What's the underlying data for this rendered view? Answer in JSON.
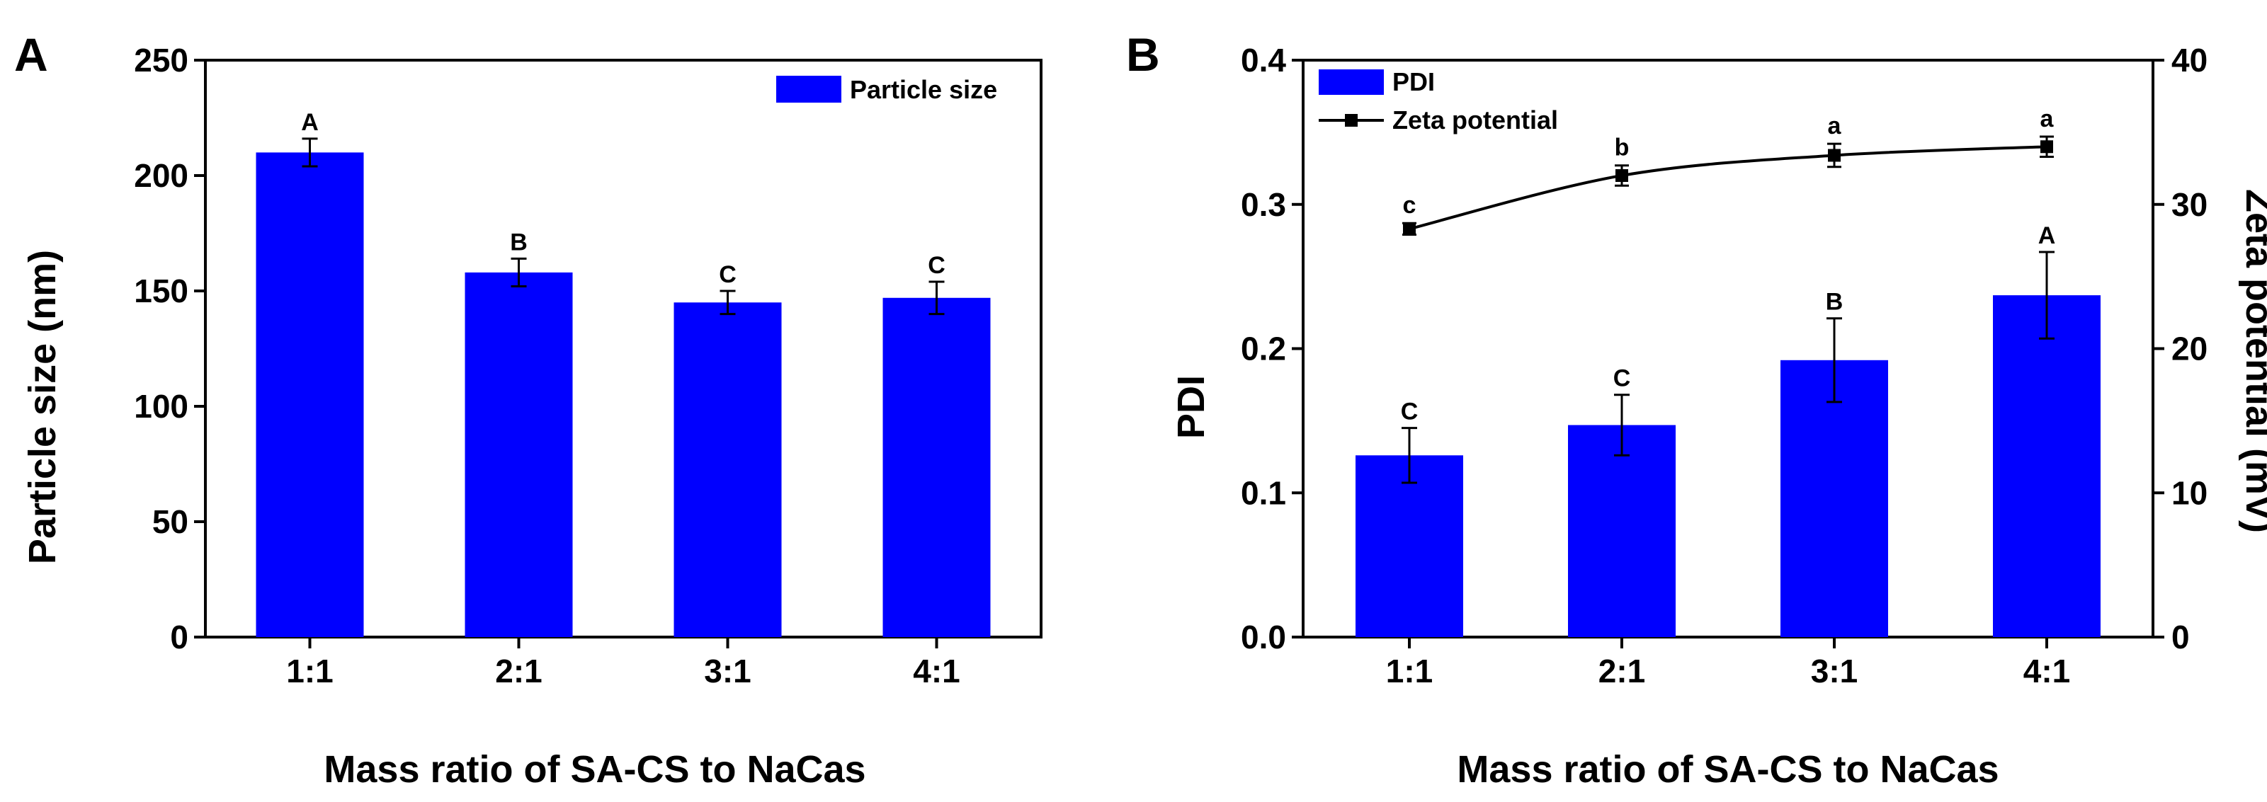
{
  "chart_data": [
    {
      "panel": "A",
      "type": "bar",
      "categories": [
        "1:1",
        "2:1",
        "3:1",
        "4:1"
      ],
      "series": [
        {
          "name": "Particle size",
          "values": [
            210,
            158,
            145,
            147
          ],
          "errors": [
            6,
            6,
            5,
            7
          ],
          "labels": [
            "A",
            "B",
            "C",
            "C"
          ],
          "color": "#0000FF"
        }
      ],
      "xlabel": "Mass ratio of SA-CS to NaCas",
      "ylabel": "Particle size (nm)",
      "ylim": [
        0,
        250
      ],
      "yticks": [
        0,
        50,
        100,
        150,
        200,
        250
      ],
      "ytick_labels": [
        "0",
        "50",
        "100",
        "150",
        "200",
        "250"
      ],
      "legend": "top-right",
      "grid": false
    },
    {
      "panel": "B",
      "type": "bar",
      "categories": [
        "1:1",
        "2:1",
        "3:1",
        "4:1"
      ],
      "series": [
        {
          "name": "PDI",
          "type": "bar",
          "axis": "left",
          "values": [
            0.126,
            0.147,
            0.192,
            0.237
          ],
          "errors": [
            0.019,
            0.021,
            0.029,
            0.03
          ],
          "labels": [
            "C",
            "C",
            "B",
            "A"
          ],
          "color": "#0000FF"
        },
        {
          "name": "Zeta potential",
          "type": "line",
          "axis": "right",
          "values": [
            28.3,
            32.0,
            33.4,
            34.0
          ],
          "errors": [
            0.4,
            0.7,
            0.8,
            0.7
          ],
          "labels": [
            "c",
            "b",
            "a",
            "a"
          ],
          "color": "#000000"
        }
      ],
      "xlabel": "Mass ratio of SA-CS to NaCas",
      "ylabel": "PDI",
      "ylim": [
        0,
        0.4
      ],
      "yticks": [
        0,
        0.1,
        0.2,
        0.3,
        0.4
      ],
      "ytick_labels": [
        "0.0",
        "0.1",
        "0.2",
        "0.3",
        "0.4"
      ],
      "y2label": "Zeta potential (mV)",
      "y2lim": [
        0,
        40
      ],
      "y2ticks": [
        0,
        10,
        20,
        30,
        40
      ],
      "y2tick_labels": [
        "0",
        "10",
        "20",
        "30",
        "40"
      ],
      "legend": "top-left",
      "grid": false
    }
  ]
}
